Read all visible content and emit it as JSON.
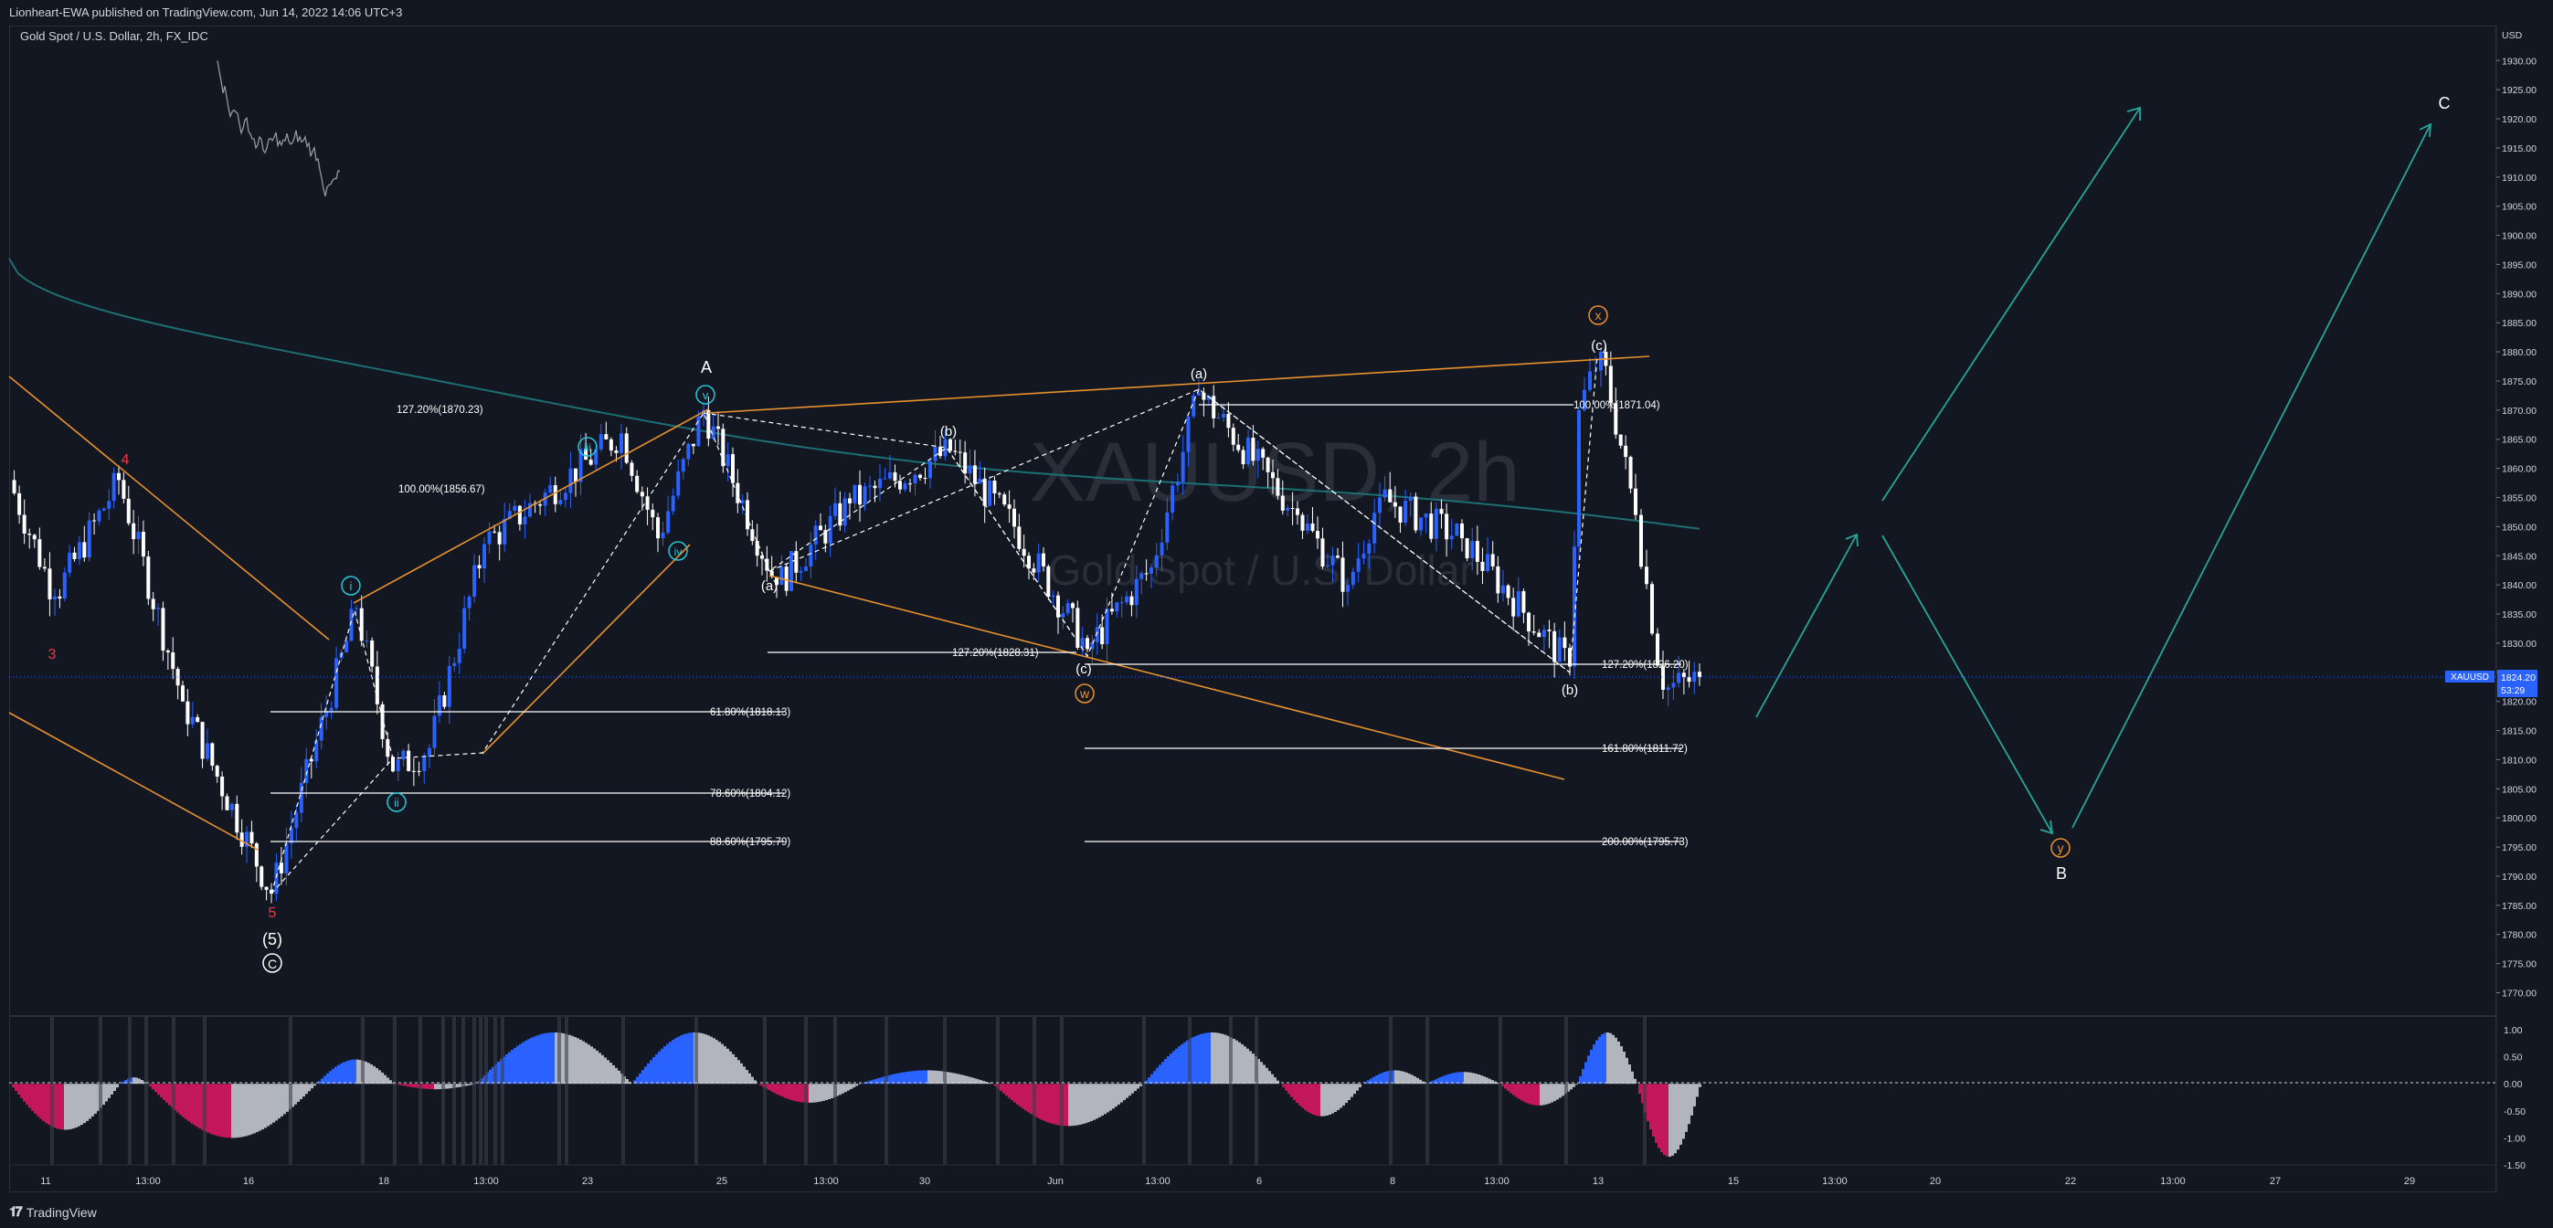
{
  "header": {
    "publisher": "Lionheart-EWA published on TradingView.com, Jun 14, 2022 14:06 UTC+3",
    "symbol_title": "Gold Spot / U.S. Dollar, 2h, FX_IDC"
  },
  "watermark": {
    "ticker": "XAUUSD, 2h",
    "name": "Gold Spot / U.S. Dollar"
  },
  "footer": {
    "brand": "TradingView",
    "logo_icon": "tradingview-logo-icon"
  },
  "colors": {
    "background": "#131722",
    "bull": "#2962ff",
    "bear": "#ffffff",
    "ma": "#1c6f73",
    "channel": "#e8912d",
    "projection": "#26a69a",
    "wave_red": "#f23645",
    "wave_cyan": "#26c6da",
    "osc_pos": "#2962ff",
    "osc_neg": "#c2185b",
    "osc_gray": "#b2b5be"
  },
  "price_axis": {
    "currency": "USD",
    "ticks": [
      "1930.00",
      "1925.00",
      "1920.00",
      "1915.00",
      "1910.00",
      "1905.00",
      "1900.00",
      "1895.00",
      "1890.00",
      "1885.00",
      "1880.00",
      "1875.00",
      "1870.00",
      "1865.00",
      "1860.00",
      "1855.00",
      "1850.00",
      "1845.00",
      "1840.00",
      "1835.00",
      "1830.00",
      "1825.00",
      "1820.00",
      "1815.00",
      "1810.00",
      "1805.00",
      "1800.00",
      "1795.00",
      "1790.00",
      "1785.00",
      "1780.00",
      "1775.00",
      "1770.00"
    ],
    "last_price_symbol": "XAUUSD",
    "last_price": "1824.20",
    "countdown": "53:29"
  },
  "oscillator_axis": {
    "ticks": [
      "1.00",
      "0.50",
      "0.00",
      "-0.50",
      "-1.00",
      "-1.50"
    ]
  },
  "time_axis": {
    "labels": [
      "11",
      "13:00",
      "16",
      "18",
      "13:00",
      "23",
      "25",
      "13:00",
      "30",
      "Jun",
      "13:00",
      "6",
      "8",
      "13:00",
      "13",
      "15",
      "13:00",
      "20",
      "22",
      "13:00",
      "27",
      "29"
    ]
  },
  "fib_labels": {
    "f1": "127.20%(1870.23)",
    "f2": "100.00%(1856.67)",
    "f3": "61.80%(1818.13)",
    "f4": "78.60%(1804.12)",
    "f5": "88.60%(1795.79)",
    "f6": "127.20%(1828.31)",
    "f7": "100.00%(1871.04)",
    "f8": "127.20%(1826.20)",
    "f9": "161.80%(1811.72)",
    "f10": "200.00%(1795.73)"
  },
  "wave_labels": {
    "w4": "4",
    "w3": "3",
    "w5": "5",
    "w5p": "(5)",
    "wC": "C",
    "wi": "i",
    "wii": "ii",
    "wiii": "iii",
    "wiv": "iv",
    "wv": "v",
    "wA": "A",
    "wa1": "(a)",
    "wb1": "(b)",
    "wc1": "(c)",
    "ww": "w",
    "wa2": "(a)",
    "wx": "x",
    "wc2": "(c)",
    "wb2": "(b)",
    "wy": "y",
    "wB": "B",
    "wC2": "C"
  },
  "chart_data": {
    "type": "candlestick",
    "title": "Gold Spot / U.S. Dollar, 2h, FX_IDC",
    "ylim": [
      1766,
      1936
    ],
    "price_path_key": [
      [
        "May 11",
        1858
      ],
      [
        "May 11 13:00",
        1838
      ],
      [
        "May 12",
        1858
      ],
      [
        "May 13",
        1820
      ],
      [
        "May 16",
        1787
      ],
      [
        "May 17",
        1836
      ],
      [
        "May 18",
        1808
      ],
      [
        "May 19",
        1812
      ],
      [
        "May 20",
        1847
      ],
      [
        "May 23",
        1866
      ],
      [
        "May 24",
        1848
      ],
      [
        "May 24",
        1870
      ],
      [
        "May 26",
        1840
      ],
      [
        "May 27",
        1854
      ],
      [
        "May 30",
        1863
      ],
      [
        "May 31",
        1850
      ],
      [
        "Jun 1",
        1829
      ],
      [
        "Jun 2",
        1843
      ],
      [
        "Jun 3",
        1873
      ],
      [
        "Jun 6",
        1852
      ],
      [
        "Jun 7",
        1840
      ],
      [
        "Jun 8",
        1855
      ],
      [
        "Jun 9",
        1848
      ],
      [
        "Jun 10",
        1826
      ],
      [
        "Jun 10",
        1870
      ],
      [
        "Jun 13",
        1880
      ],
      [
        "Jun 13",
        1852
      ],
      [
        "Jun 14",
        1822
      ],
      [
        "Jun 14",
        1824.2
      ]
    ],
    "projection": {
      "path": [
        [
          "Jun 14",
          1820
        ],
        [
          "Jun 15 13:00",
          1849
        ],
        [
          "Jun 20",
          1851
        ],
        [
          "Jun 22",
          1797
        ],
        [
          "Jun 27",
          1920
        ]
      ],
      "labels": {
        "y": "Jun 22",
        "C": "Jun 29"
      }
    },
    "ma_line": {
      "start": 1896,
      "end": 1849
    },
    "oscillator": {
      "ylim": [
        -1.5,
        1.0
      ],
      "zero_line": 0.0
    }
  }
}
